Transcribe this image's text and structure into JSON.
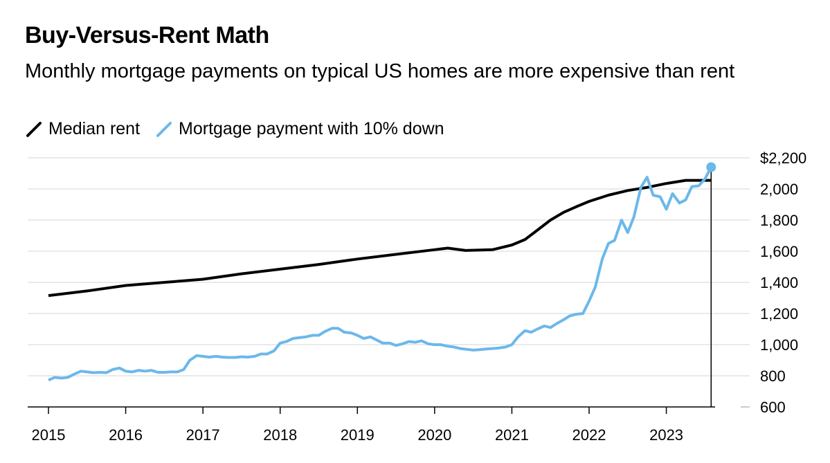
{
  "header": {
    "title": "Buy-Versus-Rent Math",
    "subtitle": "Monthly mortgage payments on typical US homes are more expensive than rent"
  },
  "colors": {
    "rent": "#000000",
    "mortgage": "#6cb8ea",
    "grid": "#e3e3e3",
    "axis": "#000000"
  },
  "chart_data": {
    "type": "line",
    "title": "Buy-Versus-Rent Math",
    "subtitle": "Monthly mortgage payments on typical US homes are more expensive than rent",
    "ylim": [
      600,
      2200
    ],
    "yticks": [
      600,
      800,
      1000,
      1200,
      1400,
      1600,
      1800,
      2000,
      2200
    ],
    "ytick_labels": [
      "600",
      "800",
      "1,000",
      "1,200",
      "1,400",
      "1,600",
      "1,800",
      "2,000",
      "$2,200"
    ],
    "xlim": [
      2015,
      2023.75
    ],
    "xticks": [
      2015,
      2016,
      2017,
      2018,
      2019,
      2020,
      2021,
      2022,
      2023
    ],
    "xtick_labels": [
      "2015",
      "2016",
      "2017",
      "2018",
      "2019",
      "2020",
      "2021",
      "2022",
      "2023"
    ],
    "grid": true,
    "legend_position": "top-left",
    "series": [
      {
        "name": "Median rent",
        "x": [
          2015,
          2015.5,
          2016,
          2016.5,
          2017,
          2017.5,
          2018,
          2018.5,
          2019,
          2019.5,
          2020,
          2020.17,
          2020.4,
          2020.75,
          2021,
          2021.17,
          2021.33,
          2021.5,
          2021.67,
          2021.83,
          2022,
          2022.25,
          2022.5,
          2022.75,
          2023,
          2023.25,
          2023.5,
          2023.58
        ],
        "values": [
          1315,
          1345,
          1380,
          1400,
          1420,
          1455,
          1485,
          1515,
          1550,
          1580,
          1610,
          1620,
          1605,
          1610,
          1640,
          1675,
          1735,
          1800,
          1850,
          1885,
          1920,
          1960,
          1990,
          2010,
          2035,
          2055,
          2055,
          2055
        ]
      },
      {
        "name": "Mortgage payment with 10% down",
        "x": [
          2015,
          2015.08,
          2015.17,
          2015.25,
          2015.33,
          2015.42,
          2015.5,
          2015.58,
          2015.67,
          2015.75,
          2015.83,
          2015.92,
          2016,
          2016.08,
          2016.17,
          2016.25,
          2016.33,
          2016.42,
          2016.5,
          2016.58,
          2016.67,
          2016.75,
          2016.83,
          2016.92,
          2017,
          2017.08,
          2017.17,
          2017.25,
          2017.33,
          2017.42,
          2017.5,
          2017.58,
          2017.67,
          2017.75,
          2017.83,
          2017.92,
          2018,
          2018.08,
          2018.17,
          2018.25,
          2018.33,
          2018.42,
          2018.5,
          2018.58,
          2018.67,
          2018.75,
          2018.83,
          2018.92,
          2019,
          2019.08,
          2019.17,
          2019.25,
          2019.33,
          2019.42,
          2019.5,
          2019.58,
          2019.67,
          2019.75,
          2019.83,
          2019.92,
          2020,
          2020.08,
          2020.17,
          2020.25,
          2020.33,
          2020.42,
          2020.5,
          2020.58,
          2020.67,
          2020.75,
          2020.83,
          2020.92,
          2021,
          2021.08,
          2021.17,
          2021.25,
          2021.33,
          2021.42,
          2021.5,
          2021.58,
          2021.67,
          2021.75,
          2021.83,
          2021.92,
          2022,
          2022.08,
          2022.17,
          2022.25,
          2022.33,
          2022.42,
          2022.5,
          2022.58,
          2022.67,
          2022.75,
          2022.83,
          2022.92,
          2023,
          2023.08,
          2023.17,
          2023.25,
          2023.33,
          2023.42,
          2023.5,
          2023.58
        ],
        "values": [
          772,
          790,
          785,
          790,
          810,
          830,
          825,
          820,
          822,
          820,
          840,
          850,
          830,
          825,
          835,
          830,
          835,
          822,
          822,
          825,
          825,
          840,
          900,
          930,
          925,
          920,
          925,
          920,
          918,
          918,
          922,
          920,
          925,
          940,
          940,
          960,
          1010,
          1020,
          1040,
          1045,
          1050,
          1060,
          1060,
          1085,
          1105,
          1105,
          1080,
          1075,
          1060,
          1040,
          1050,
          1030,
          1010,
          1010,
          995,
          1005,
          1020,
          1015,
          1025,
          1005,
          1000,
          1000,
          990,
          985,
          975,
          970,
          965,
          968,
          972,
          975,
          978,
          985,
          1000,
          1050,
          1090,
          1080,
          1100,
          1120,
          1110,
          1135,
          1160,
          1185,
          1195,
          1200,
          1280,
          1370,
          1550,
          1650,
          1670,
          1800,
          1720,
          1820,
          2010,
          2075,
          1960,
          1950,
          1870,
          1970,
          1910,
          1930,
          2015,
          2020,
          2065,
          2140
        ]
      }
    ]
  }
}
